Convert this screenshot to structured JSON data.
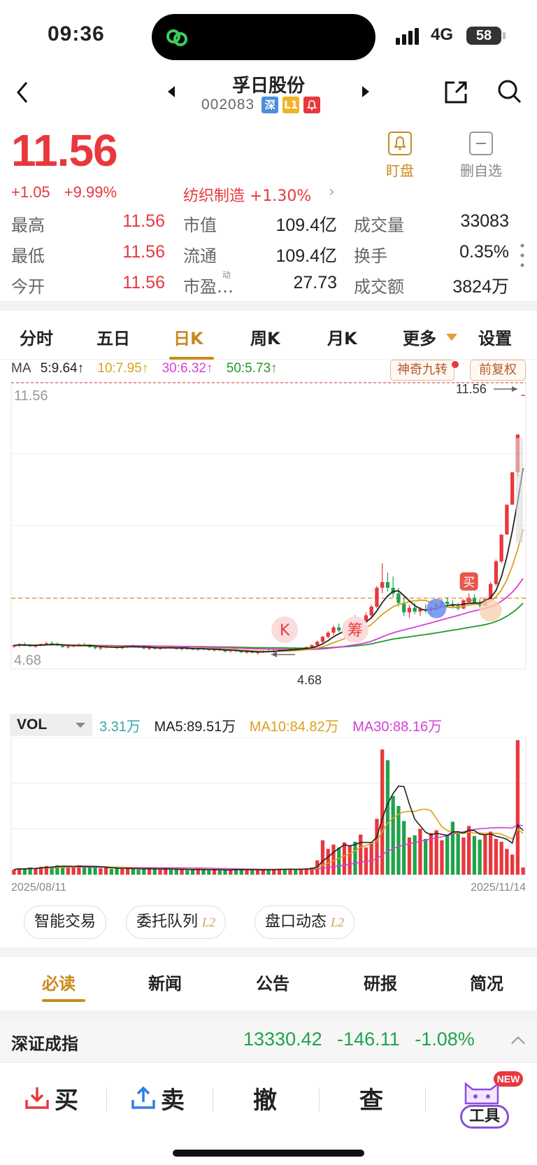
{
  "status_bar": {
    "time": "09:36",
    "network": "4G",
    "battery": "58"
  },
  "header": {
    "stock_name": "孚日股份",
    "stock_code": "002083",
    "tag_market": "深",
    "tag_level": "L1"
  },
  "quote": {
    "price": "11.56",
    "change": "+1.05",
    "change_pct": "+9.99%",
    "sector": "纺织制造 +1.30%",
    "watch_label": "盯盘",
    "remove_label": "删自选",
    "stats": [
      {
        "label": "最高",
        "value": "11.56"
      },
      {
        "label": "最低",
        "value": "11.56"
      },
      {
        "label": "今开",
        "value": "11.56"
      },
      {
        "label": "市值",
        "value": "109.4亿"
      },
      {
        "label": "流通",
        "value": "109.4亿"
      },
      {
        "label": "市盈…",
        "value": "27.73",
        "superscript": "动"
      },
      {
        "label": "成交量",
        "value": "33083"
      },
      {
        "label": "换手",
        "value": "0.35%"
      },
      {
        "label": "成交额",
        "value": "3824万"
      }
    ]
  },
  "tabs": [
    "分时",
    "五日",
    "日K",
    "周K",
    "月K",
    "更多",
    "设置"
  ],
  "active_tab": "日K",
  "ma_legend": {
    "label": "MA",
    "ma5": "5:9.64↑",
    "ma10": "10:7.95↑",
    "ma30": "30:6.32↑",
    "ma50": "50:5.73↑"
  },
  "chart_buttons": {
    "magic": "神奇九转",
    "adjust": "前复权"
  },
  "chart_data": {
    "type": "candlestick",
    "price_axis": {
      "top": "11.56",
      "bottom": "4.68",
      "high_label": "11.56",
      "low_label": "4.68"
    },
    "ylim": [
      4.3,
      11.9
    ],
    "dashed_level": 6.17,
    "markers": [
      {
        "label": "K",
        "index": 50
      },
      {
        "label": "筹",
        "index": 63
      },
      {
        "label": "买",
        "index": 84
      }
    ],
    "candles": [
      [
        4.9,
        4.95,
        4.85,
        4.92
      ],
      [
        4.92,
        4.98,
        4.88,
        4.95
      ],
      [
        4.95,
        5.0,
        4.9,
        4.93
      ],
      [
        4.93,
        4.96,
        4.88,
        4.9
      ],
      [
        4.9,
        4.94,
        4.86,
        4.92
      ],
      [
        4.92,
        4.97,
        4.9,
        4.96
      ],
      [
        4.96,
        5.02,
        4.93,
        4.98
      ],
      [
        4.98,
        5.03,
        4.94,
        4.96
      ],
      [
        4.96,
        5.0,
        4.9,
        4.92
      ],
      [
        4.92,
        4.95,
        4.86,
        4.88
      ],
      [
        4.88,
        4.92,
        4.84,
        4.9
      ],
      [
        4.9,
        4.95,
        4.87,
        4.94
      ],
      [
        4.94,
        4.98,
        4.9,
        4.95
      ],
      [
        4.95,
        4.99,
        4.9,
        4.92
      ],
      [
        4.92,
        4.96,
        4.86,
        4.88
      ],
      [
        4.88,
        4.9,
        4.82,
        4.85
      ],
      [
        4.85,
        4.9,
        4.8,
        4.87
      ],
      [
        4.87,
        4.92,
        4.84,
        4.9
      ],
      [
        4.9,
        4.94,
        4.86,
        4.88
      ],
      [
        4.88,
        4.91,
        4.83,
        4.86
      ],
      [
        4.86,
        4.9,
        4.82,
        4.88
      ],
      [
        4.88,
        4.93,
        4.85,
        4.91
      ],
      [
        4.91,
        4.95,
        4.87,
        4.9
      ],
      [
        4.9,
        4.93,
        4.85,
        4.87
      ],
      [
        4.87,
        4.9,
        4.82,
        4.85
      ],
      [
        4.85,
        4.88,
        4.8,
        4.86
      ],
      [
        4.86,
        4.9,
        4.82,
        4.84
      ],
      [
        4.84,
        4.88,
        4.8,
        4.86
      ],
      [
        4.86,
        4.9,
        4.83,
        4.88
      ],
      [
        4.88,
        4.92,
        4.84,
        4.86
      ],
      [
        4.86,
        4.89,
        4.81,
        4.83
      ],
      [
        4.83,
        4.87,
        4.79,
        4.85
      ],
      [
        4.85,
        4.89,
        4.81,
        4.84
      ],
      [
        4.84,
        4.87,
        4.8,
        4.82
      ],
      [
        4.82,
        4.86,
        4.78,
        4.84
      ],
      [
        4.84,
        4.88,
        4.8,
        4.83
      ],
      [
        4.83,
        4.86,
        4.78,
        4.8
      ],
      [
        4.8,
        4.84,
        4.76,
        4.82
      ],
      [
        4.82,
        4.85,
        4.78,
        4.79
      ],
      [
        4.79,
        4.83,
        4.74,
        4.78
      ],
      [
        4.78,
        4.82,
        4.73,
        4.8
      ],
      [
        4.8,
        4.83,
        4.75,
        4.77
      ],
      [
        4.77,
        4.8,
        4.72,
        4.74
      ],
      [
        4.74,
        4.78,
        4.7,
        4.76
      ],
      [
        4.76,
        4.79,
        4.71,
        4.73
      ],
      [
        4.73,
        4.77,
        4.68,
        4.75
      ],
      [
        4.75,
        4.8,
        4.72,
        4.78
      ],
      [
        4.78,
        4.82,
        4.74,
        4.76
      ],
      [
        4.76,
        4.8,
        4.72,
        4.79
      ],
      [
        4.79,
        4.84,
        4.76,
        4.82
      ],
      [
        4.82,
        4.86,
        4.78,
        4.8
      ],
      [
        4.8,
        4.85,
        4.77,
        4.84
      ],
      [
        4.84,
        4.88,
        4.8,
        4.82
      ],
      [
        4.82,
        4.86,
        4.78,
        4.85
      ],
      [
        4.85,
        4.9,
        4.82,
        4.88
      ],
      [
        4.88,
        4.95,
        4.85,
        4.93
      ],
      [
        4.93,
        5.05,
        4.9,
        5.02
      ],
      [
        5.02,
        5.18,
        4.98,
        5.15
      ],
      [
        5.15,
        5.3,
        5.1,
        5.26
      ],
      [
        5.26,
        5.45,
        5.2,
        5.4
      ],
      [
        5.4,
        5.5,
        5.28,
        5.32
      ],
      [
        5.32,
        5.42,
        5.22,
        5.38
      ],
      [
        5.38,
        5.6,
        5.34,
        5.55
      ],
      [
        5.55,
        5.72,
        5.45,
        5.48
      ],
      [
        5.48,
        5.62,
        5.4,
        5.58
      ],
      [
        5.58,
        5.8,
        5.5,
        5.72
      ],
      [
        5.72,
        6.0,
        5.65,
        5.95
      ],
      [
        5.95,
        6.5,
        5.9,
        6.45
      ],
      [
        6.45,
        7.1,
        6.3,
        6.6
      ],
      [
        6.6,
        6.85,
        6.35,
        6.45
      ],
      [
        6.45,
        6.75,
        6.2,
        6.3
      ],
      [
        6.3,
        6.45,
        5.95,
        6.05
      ],
      [
        6.05,
        6.2,
        5.7,
        5.8
      ],
      [
        5.8,
        6.0,
        5.65,
        5.92
      ],
      [
        5.92,
        6.05,
        5.75,
        5.82
      ],
      [
        5.82,
        5.95,
        5.7,
        5.88
      ],
      [
        5.88,
        6.02,
        5.78,
        5.85
      ],
      [
        5.85,
        5.98,
        5.75,
        5.93
      ],
      [
        5.93,
        6.1,
        5.85,
        6.0
      ],
      [
        6.0,
        6.15,
        5.92,
        6.08
      ],
      [
        6.08,
        6.2,
        5.98,
        6.02
      ],
      [
        6.02,
        6.12,
        5.9,
        5.96
      ],
      [
        5.96,
        6.05,
        5.85,
        5.9
      ],
      [
        5.9,
        6.15,
        5.88,
        6.12
      ],
      [
        6.12,
        6.3,
        6.05,
        6.18
      ],
      [
        6.18,
        6.28,
        6.02,
        6.06
      ],
      [
        6.06,
        6.15,
        5.92,
        5.98
      ],
      [
        5.98,
        6.2,
        5.95,
        6.15
      ],
      [
        6.15,
        6.6,
        6.1,
        6.55
      ],
      [
        6.55,
        7.2,
        6.5,
        7.15
      ],
      [
        7.15,
        7.86,
        7.1,
        7.86
      ],
      [
        7.86,
        8.65,
        7.86,
        8.65
      ],
      [
        8.65,
        9.51,
        8.65,
        9.51
      ],
      [
        9.51,
        10.51,
        9.4,
        10.51
      ],
      [
        11.56,
        11.56,
        11.56,
        11.56
      ]
    ],
    "volumes": [
      0.7,
      0.9,
      0.8,
      1.0,
      0.9,
      1.1,
      1.2,
      1.1,
      1.3,
      1.2,
      1.0,
      1.1,
      1.3,
      1.2,
      1.1,
      1.0,
      0.9,
      1.0,
      0.8,
      0.9,
      0.8,
      0.9,
      0.8,
      0.7,
      0.8,
      0.9,
      0.8,
      0.7,
      0.8,
      0.7,
      0.8,
      0.7,
      0.6,
      0.7,
      0.8,
      0.7,
      0.6,
      0.7,
      0.6,
      0.7,
      0.7,
      0.8,
      0.7,
      0.6,
      0.7,
      0.6,
      0.7,
      0.8,
      0.7,
      0.8,
      0.7,
      0.8,
      0.7,
      0.8,
      0.9,
      1.0,
      2.0,
      4.8,
      3.6,
      4.2,
      3.8,
      4.5,
      4.0,
      4.6,
      5.6,
      3.8,
      4.4,
      7.8,
      17.5,
      16.0,
      11.0,
      9.6,
      7.5,
      5.2,
      5.5,
      6.4,
      5.0,
      5.8,
      6.2,
      4.8,
      5.6,
      7.4,
      6.0,
      5.2,
      6.8,
      5.4,
      4.9,
      5.5,
      6.0,
      5.0,
      4.6,
      3.6,
      2.8,
      18.8,
      1.0
    ],
    "ma_colors": {
      "ma5": "#222222",
      "ma10": "#d9a21b",
      "ma30": "#d640d6",
      "ma50": "#1f9a2c"
    }
  },
  "volume_legend": {
    "selector": "VOL",
    "current": "3.31万",
    "ma5": "MA5:89.51万",
    "ma10": "MA10:84.82万",
    "ma30": "MA30:88.16万"
  },
  "date_range": {
    "start": "2025/08/11",
    "end": "2025/11/14"
  },
  "quick_buttons": [
    {
      "label": "智能交易",
      "badge": ""
    },
    {
      "label": "委托队列",
      "badge": "L2"
    },
    {
      "label": "盘口动态",
      "badge": "L2"
    }
  ],
  "info_tabs": [
    "必读",
    "新闻",
    "公告",
    "研报",
    "简况"
  ],
  "active_info_tab": "必读",
  "index_bar": {
    "name": "深证成指",
    "value": "13330.42",
    "change": "-146.11",
    "pct": "-1.08%"
  },
  "bottom_bar": {
    "buy": "买",
    "sell": "卖",
    "cancel": "撤",
    "query": "查",
    "tools": "工具",
    "new_badge": "NEW"
  },
  "colors": {
    "up": "#e8383d",
    "down": "#1fa34a",
    "accent": "#c98a1e"
  }
}
